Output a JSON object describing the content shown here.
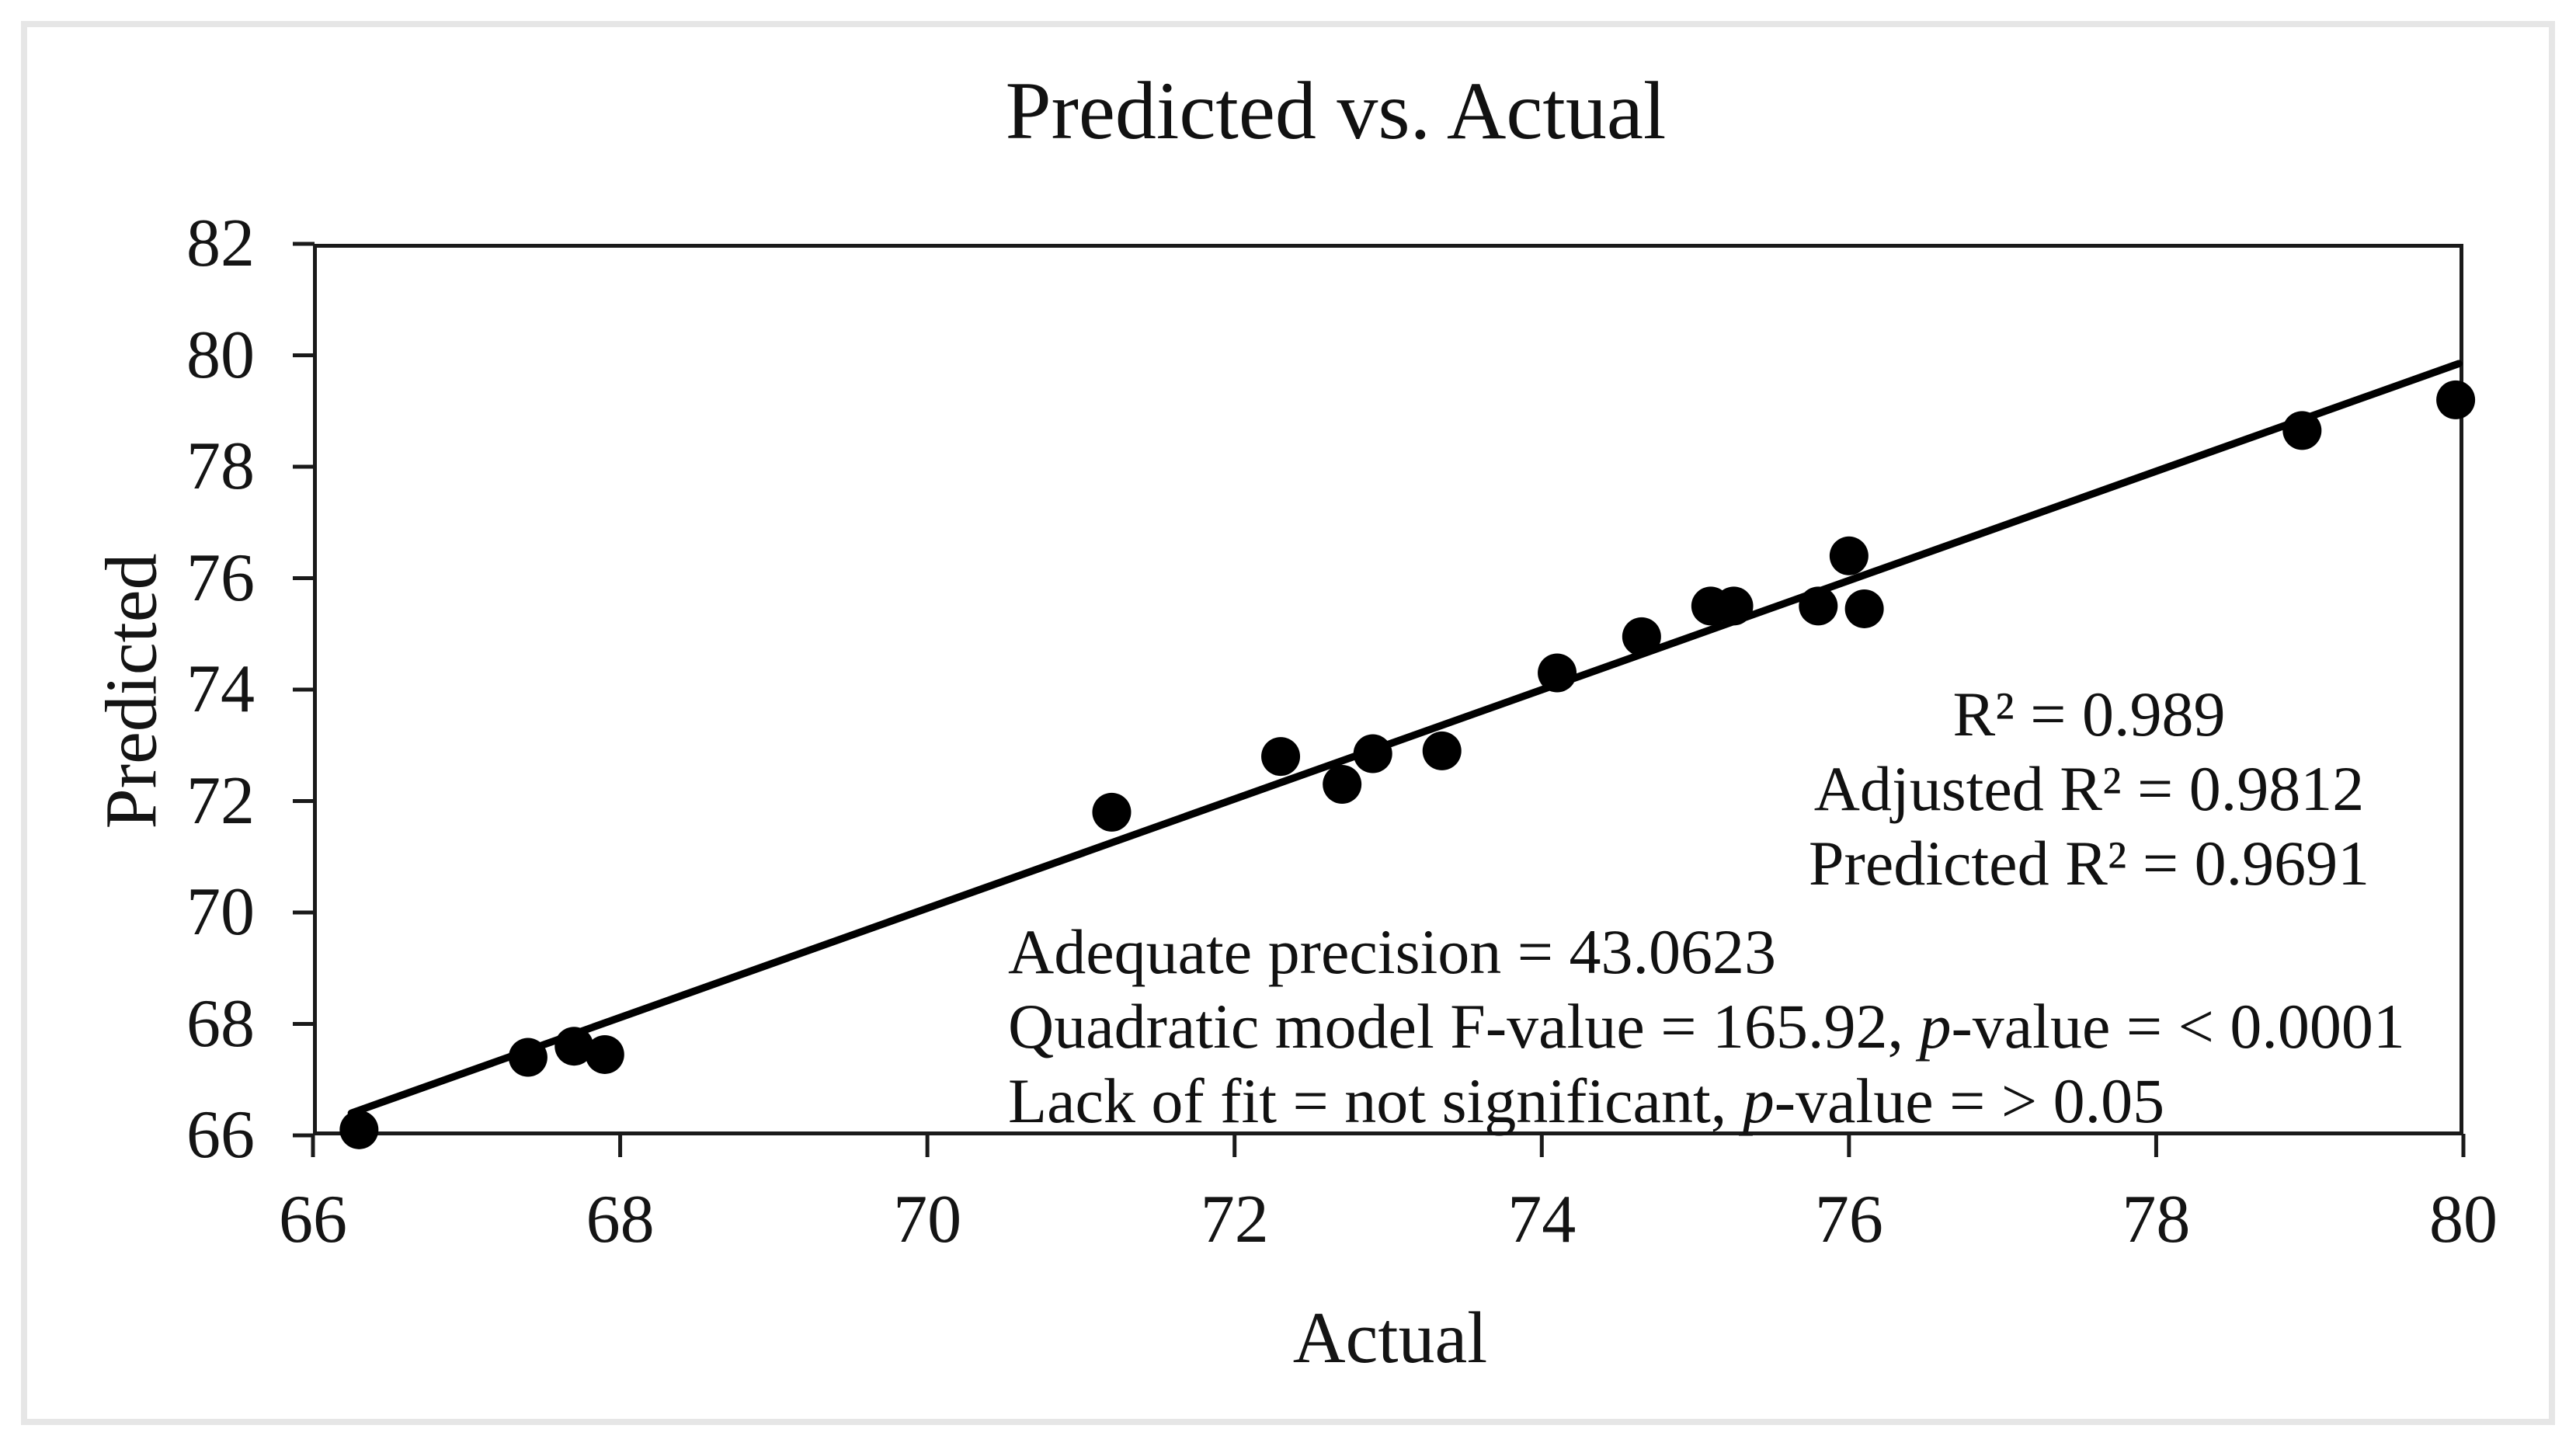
{
  "figure": {
    "title": "Predicted vs. Actual",
    "x_axis_label": "Actual",
    "y_axis_label": "Predicted"
  },
  "annotations": {
    "r2_block": {
      "line1": "R² = 0.989",
      "line2": "Adjusted R² = 0.9812",
      "line3": "Predicted R² = 0.9691"
    },
    "stats_block": {
      "line1": "Adequate precision = 43.0623",
      "line2_pre": "Quadratic model F-value = 165.92, ",
      "line2_italic": "p",
      "line2_post": "-value = < 0.0001",
      "line3_pre": "Lack of fit = not significant, ",
      "line3_italic": "p",
      "line3_post": "-value = > 0.05"
    }
  },
  "chart_data": {
    "type": "scatter",
    "title": "Predicted vs. Actual",
    "xlabel": "Actual",
    "ylabel": "Predicted",
    "xlim": [
      66,
      80
    ],
    "ylim": [
      66,
      82
    ],
    "x_ticks": [
      66,
      68,
      70,
      72,
      74,
      76,
      78,
      80
    ],
    "y_ticks": [
      66,
      68,
      70,
      72,
      74,
      76,
      78,
      80,
      82
    ],
    "grid": false,
    "legend": null,
    "marker_color": "#000000",
    "line_color": "#000000",
    "axis_color": "#1a1a1a",
    "marker_radius_px": 25,
    "points": [
      [
        66.3,
        66.1
      ],
      [
        67.4,
        67.4
      ],
      [
        67.7,
        67.6
      ],
      [
        67.9,
        67.45
      ],
      [
        71.2,
        71.8
      ],
      [
        72.3,
        72.8
      ],
      [
        72.7,
        72.3
      ],
      [
        72.9,
        72.85
      ],
      [
        73.35,
        72.9
      ],
      [
        74.1,
        74.3
      ],
      [
        74.65,
        74.95
      ],
      [
        75.1,
        75.5
      ],
      [
        75.25,
        75.5
      ],
      [
        75.8,
        75.5
      ],
      [
        76.0,
        76.4
      ],
      [
        76.1,
        75.45
      ],
      [
        78.95,
        78.65
      ],
      [
        79.95,
        79.2
      ]
    ],
    "fit_line": {
      "x1": 66.25,
      "y1": 66.4,
      "x2": 79.97,
      "y2": 79.85
    }
  }
}
